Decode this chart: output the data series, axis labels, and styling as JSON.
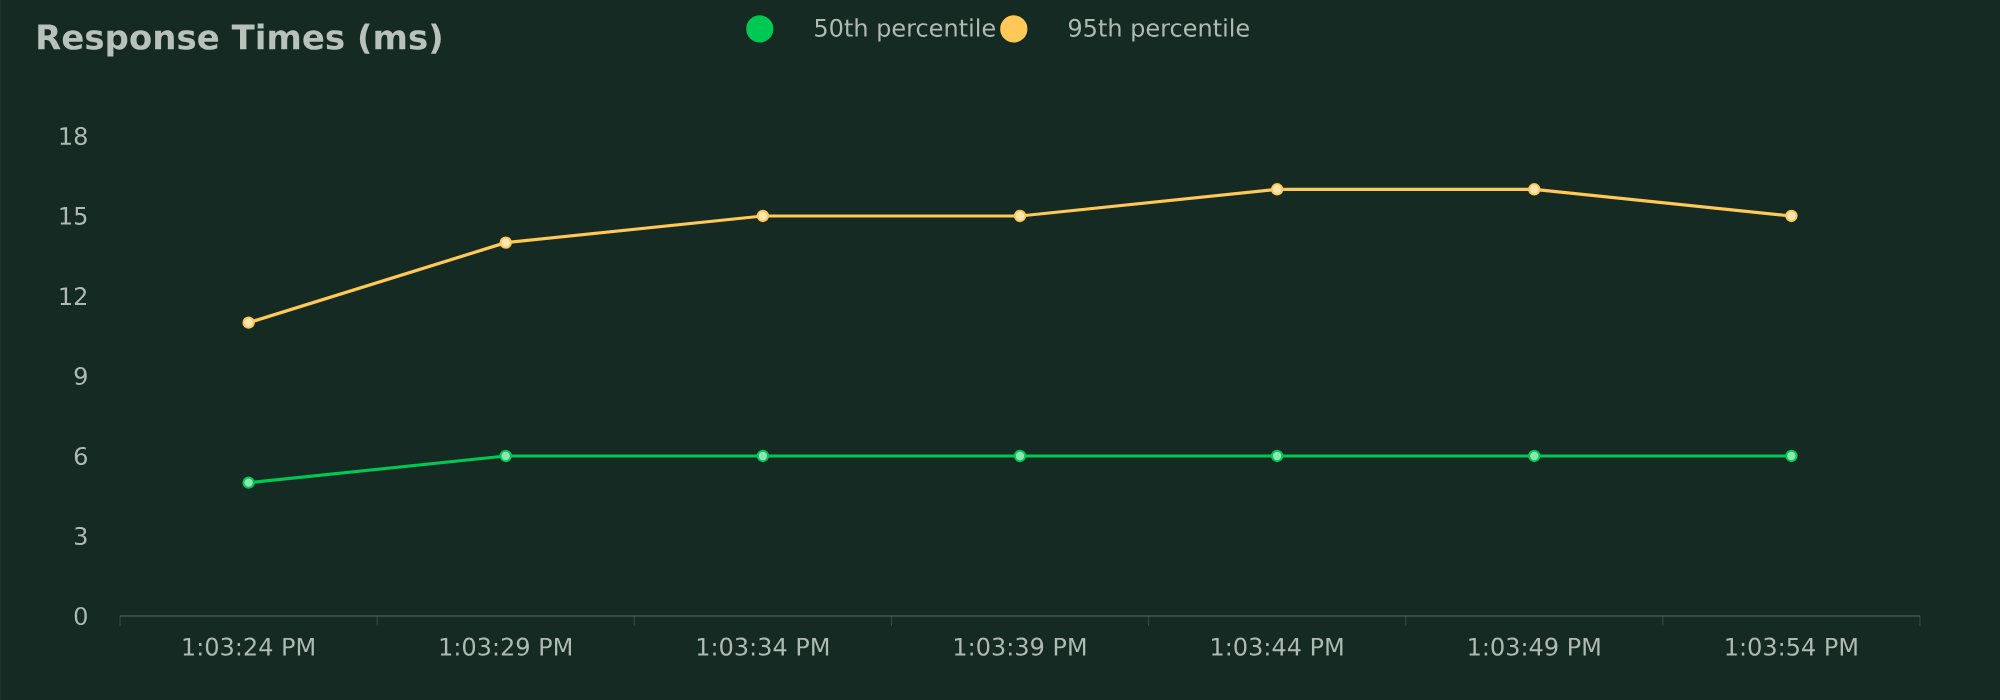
{
  "chart_data": {
    "type": "line",
    "title": "Response Times (ms)",
    "categories": [
      "1:03:24 PM",
      "1:03:29 PM",
      "1:03:34 PM",
      "1:03:39 PM",
      "1:03:44 PM",
      "1:03:49 PM",
      "1:03:54 PM"
    ],
    "series": [
      {
        "name": "50th percentile",
        "color": "#00c853",
        "values": [
          5,
          6,
          6,
          6,
          6,
          6,
          6
        ]
      },
      {
        "name": "95th percentile",
        "color": "#ffc857",
        "values": [
          11,
          14,
          15,
          15,
          16,
          16,
          15
        ]
      }
    ],
    "ylim": [
      0,
      18
    ],
    "yticks": [
      0,
      3,
      6,
      9,
      12,
      15,
      18
    ],
    "legend": "top",
    "marker": "circle"
  }
}
